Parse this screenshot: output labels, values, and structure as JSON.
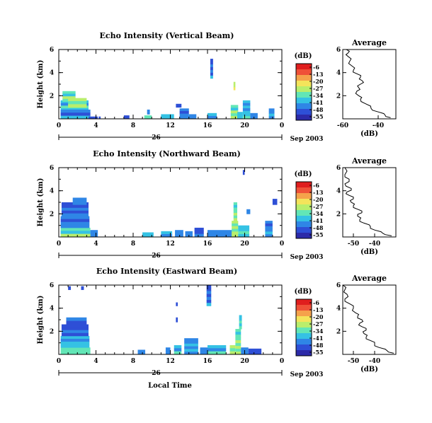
{
  "chart_data": [
    {
      "type": "heatmap",
      "title": "Echo Intensity (Vertical Beam)",
      "ylabel": "Height (km)",
      "xlim": [
        0,
        24
      ],
      "ylim": [
        0,
        6
      ],
      "x_ticks": [
        "0",
        "4",
        "8",
        "12",
        "16",
        "20",
        "0"
      ],
      "y_ticks": [
        "2",
        "4",
        "6"
      ],
      "date_marker": "26",
      "date_label": "Sep 2003",
      "colorbar": {
        "unit": "(dB)",
        "labels": [
          "-6",
          "-13",
          "-20",
          "-27",
          "-34",
          "-41",
          "-48",
          "-55"
        ]
      },
      "cells": [
        [
          0.2,
          0.0,
          3.2,
          1.6,
          0.7
        ],
        [
          0.4,
          1.5,
          1.8,
          2.4,
          0.6
        ],
        [
          1.0,
          1.0,
          3.0,
          1.8,
          0.55
        ],
        [
          0.2,
          0.0,
          3.4,
          0.8,
          0.85
        ],
        [
          3.2,
          0.0,
          4.2,
          0.2,
          0.9
        ],
        [
          9.2,
          0.0,
          10.0,
          0.3,
          0.6
        ],
        [
          9.5,
          0.4,
          9.8,
          0.8,
          0.8
        ],
        [
          11.0,
          0.0,
          12.4,
          0.4,
          0.7
        ],
        [
          13.0,
          0.0,
          14.0,
          0.9,
          0.85
        ],
        [
          12.6,
          1.0,
          13.2,
          1.3,
          0.9
        ],
        [
          14.0,
          0.0,
          14.8,
          0.4,
          0.8
        ],
        [
          16.0,
          0.0,
          17.0,
          0.5,
          0.75
        ],
        [
          16.3,
          3.5,
          16.6,
          5.2,
          0.9
        ],
        [
          18.5,
          0.0,
          19.3,
          1.2,
          0.6
        ],
        [
          18.8,
          2.5,
          19.0,
          3.2,
          0.45
        ],
        [
          19.2,
          0.0,
          19.8,
          0.6,
          0.7
        ],
        [
          19.8,
          0.0,
          20.6,
          1.6,
          0.75
        ],
        [
          20.6,
          0.0,
          21.4,
          0.5,
          0.85
        ],
        [
          22.6,
          0.0,
          23.2,
          0.9,
          0.8
        ],
        [
          4.3,
          0.0,
          4.5,
          0.2,
          0.95
        ],
        [
          7.0,
          0.0,
          7.6,
          0.3,
          0.9
        ]
      ],
      "profile": {
        "title": "Average",
        "xlabel": "(dB)",
        "xlim": [
          -60,
          -30
        ],
        "ylim": [
          0,
          6
        ],
        "x_ticks": [
          "-60",
          "-40"
        ],
        "y_ticks": [
          "2",
          "4",
          "6"
        ],
        "x": [
          -33,
          -36,
          -40,
          -44,
          -47,
          -50,
          -51,
          -52,
          -51,
          -50,
          -49,
          -50,
          -52,
          -54,
          -55,
          -56,
          -57,
          -57,
          -58
        ],
        "y": [
          0.1,
          0.3,
          0.6,
          0.9,
          1.3,
          1.7,
          2.0,
          2.4,
          2.7,
          3.0,
          3.3,
          3.6,
          3.9,
          4.2,
          4.6,
          5.0,
          5.4,
          5.7,
          6.0
        ]
      }
    },
    {
      "type": "heatmap",
      "title": "Echo Intensity (Northward Beam)",
      "ylabel": "Height (km)",
      "xlim": [
        0,
        24
      ],
      "ylim": [
        0,
        6
      ],
      "x_ticks": [
        "0",
        "4",
        "8",
        "12",
        "16",
        "20",
        "0"
      ],
      "y_ticks": [
        "2",
        "4",
        "6"
      ],
      "date_marker": "26",
      "date_label": "Sep 2003",
      "colorbar": {
        "unit": "(dB)",
        "labels": [
          "-6",
          "-13",
          "-20",
          "-27",
          "-34",
          "-41",
          "-48",
          "-55"
        ]
      },
      "cells": [
        [
          0.2,
          0.0,
          3.4,
          0.8,
          0.65
        ],
        [
          0.2,
          0.8,
          3.3,
          1.8,
          0.85
        ],
        [
          0.3,
          1.8,
          3.2,
          3.0,
          0.9
        ],
        [
          1.5,
          2.8,
          3.0,
          3.4,
          0.85
        ],
        [
          3.4,
          0.0,
          4.2,
          0.6,
          0.8
        ],
        [
          9.0,
          0.0,
          10.2,
          0.4,
          0.7
        ],
        [
          11.0,
          0.0,
          12.2,
          0.5,
          0.75
        ],
        [
          12.5,
          0.0,
          13.4,
          0.6,
          0.8
        ],
        [
          13.6,
          0.0,
          14.4,
          0.5,
          0.85
        ],
        [
          14.6,
          0.0,
          15.6,
          0.8,
          0.9
        ],
        [
          16.0,
          0.0,
          18.8,
          0.6,
          0.8
        ],
        [
          18.6,
          0.0,
          19.3,
          1.4,
          0.55
        ],
        [
          18.8,
          1.4,
          19.2,
          3.0,
          0.6
        ],
        [
          19.3,
          0.0,
          20.5,
          1.0,
          0.7
        ],
        [
          19.8,
          5.4,
          20.0,
          5.8,
          0.9
        ],
        [
          22.2,
          0.0,
          23.0,
          1.4,
          0.85
        ],
        [
          23.0,
          2.8,
          23.5,
          3.3,
          0.9
        ],
        [
          20.2,
          2.0,
          20.6,
          2.4,
          0.85
        ]
      ],
      "profile": {
        "title": "Average",
        "xlabel": "(dB)",
        "xlim": [
          -55,
          -30
        ],
        "ylim": [
          0,
          6
        ],
        "x_ticks": [
          "-50",
          "-40"
        ],
        "y_ticks": [
          "2",
          "4",
          "6"
        ],
        "x": [
          -32,
          -36,
          -40,
          -42,
          -45,
          -47,
          -48,
          -46,
          -48,
          -50,
          -51,
          -50,
          -52,
          -53,
          -51,
          -54,
          -52,
          -54,
          -54
        ],
        "y": [
          0.1,
          0.3,
          0.6,
          0.9,
          1.2,
          1.5,
          1.8,
          2.1,
          2.4,
          2.7,
          3.0,
          3.3,
          3.6,
          3.9,
          4.2,
          4.6,
          5.0,
          5.4,
          6.0
        ]
      }
    },
    {
      "type": "heatmap",
      "title": "Echo Intensity (Eastward Beam)",
      "ylabel": "Height (km)",
      "xlim": [
        0,
        24
      ],
      "ylim": [
        0,
        6
      ],
      "x_ticks": [
        "0",
        "4",
        "8",
        "12",
        "16",
        "20",
        "0"
      ],
      "y_ticks": [
        "2",
        "4",
        "6"
      ],
      "date_marker": "26",
      "date_label": "Sep 2003",
      "colorbar": {
        "unit": "(dB)",
        "labels": [
          "-6",
          "-13",
          "-20",
          "-27",
          "-34",
          "-41",
          "-48",
          "-55"
        ]
      },
      "cells": [
        [
          0.2,
          0.0,
          3.4,
          0.6,
          0.6
        ],
        [
          0.2,
          0.6,
          3.3,
          1.6,
          0.75
        ],
        [
          0.3,
          1.6,
          3.2,
          2.6,
          0.9
        ],
        [
          0.8,
          2.6,
          3.0,
          3.2,
          0.88
        ],
        [
          1.0,
          5.6,
          1.3,
          5.9,
          0.9
        ],
        [
          2.4,
          5.6,
          2.7,
          5.9,
          0.9
        ],
        [
          8.5,
          0.0,
          9.3,
          0.4,
          0.85
        ],
        [
          11.5,
          0.0,
          12.0,
          0.6,
          0.8
        ],
        [
          12.4,
          0.0,
          13.2,
          0.8,
          0.75
        ],
        [
          13.5,
          0.0,
          15.0,
          1.4,
          0.8
        ],
        [
          15.2,
          0.0,
          16.0,
          0.6,
          0.85
        ],
        [
          16.0,
          0.0,
          18.0,
          0.8,
          0.75
        ],
        [
          15.9,
          4.2,
          16.4,
          6.0,
          0.9
        ],
        [
          18.4,
          0.0,
          19.0,
          0.8,
          0.55
        ],
        [
          19.0,
          0.0,
          19.6,
          2.2,
          0.6
        ],
        [
          19.4,
          2.2,
          19.7,
          3.4,
          0.7
        ],
        [
          19.6,
          0.0,
          20.4,
          0.6,
          0.8
        ],
        [
          20.4,
          0.0,
          21.8,
          0.5,
          0.9
        ],
        [
          12.6,
          2.8,
          12.8,
          3.2,
          0.9
        ],
        [
          12.6,
          4.2,
          12.8,
          4.5,
          0.9
        ]
      ],
      "profile": {
        "title": "Average",
        "xlabel": "(dB)",
        "xlim": [
          -55,
          -30
        ],
        "ylim": [
          0,
          6
        ],
        "x_ticks": [
          "-50",
          "-40"
        ],
        "y_ticks": [
          "2",
          "4",
          "6"
        ],
        "x": [
          -31,
          -34,
          -38,
          -40,
          -42,
          -44,
          -45,
          -44,
          -46,
          -47,
          -46,
          -48,
          -49,
          -50,
          -52,
          -54,
          -53,
          -54,
          -55
        ],
        "y": [
          0.1,
          0.3,
          0.6,
          0.9,
          1.2,
          1.5,
          1.8,
          2.1,
          2.4,
          2.7,
          3.0,
          3.3,
          3.6,
          4.0,
          4.4,
          4.8,
          5.2,
          5.6,
          6.0
        ]
      }
    }
  ],
  "x_axis_title": "Local Time",
  "palette": [
    "#2c2aa8",
    "#2e4fd6",
    "#2f86e6",
    "#35c2e4",
    "#62e6b6",
    "#b9ee6c",
    "#f4e45b",
    "#f5a24b",
    "#ef5138",
    "#e01e1e"
  ]
}
